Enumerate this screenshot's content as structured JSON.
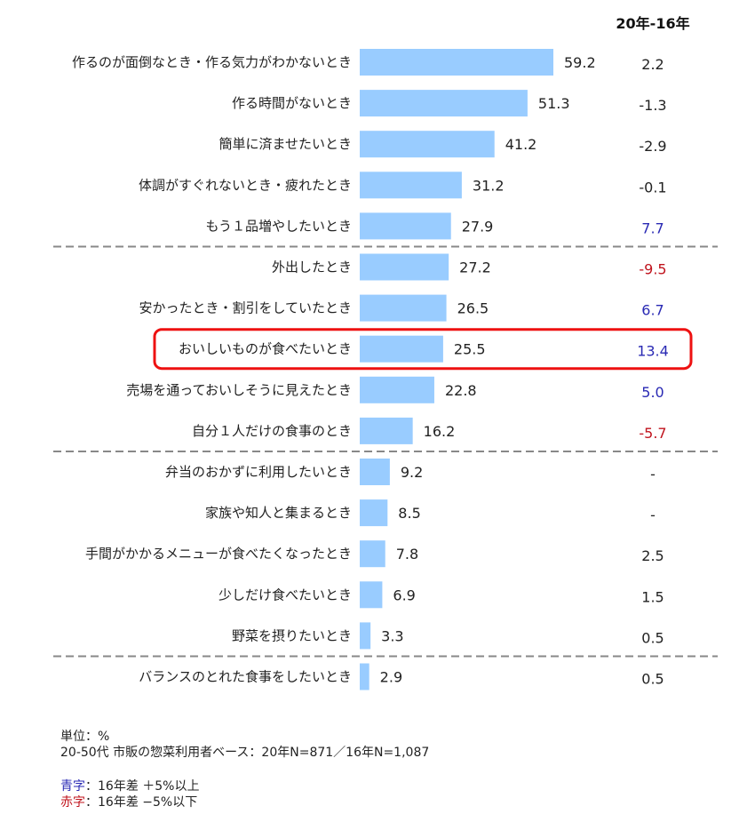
{
  "chart_data": {
    "type": "bar",
    "orientation": "horizontal",
    "unit": "%",
    "diff_header": "20年-16年",
    "categories": [
      "作るのが面倒なとき・作る気力がわかないとき",
      "作る時間がないとき",
      "簡単に済ませたいとき",
      "体調がすぐれないとき・疲れたとき",
      "もう１品増やしたいとき",
      "外出したとき",
      "安かったとき・割引をしていたとき",
      "おいしいものが食べたいとき",
      "売場を通っておいしそうに見えたとき",
      "自分１人だけの食事のとき",
      "弁当のおかずに利用したいとき",
      "家族や知人と集まるとき",
      "手間がかかるメニューが食べたくなったとき",
      "少しだけ食べたいとき",
      "野菜を摂りたいとき",
      "バランスのとれた食事をしたいとき"
    ],
    "values": [
      59.2,
      51.3,
      41.2,
      31.2,
      27.9,
      27.2,
      26.5,
      25.5,
      22.8,
      16.2,
      9.2,
      8.5,
      7.8,
      6.9,
      3.3,
      2.9
    ],
    "value_labels": [
      "59.2",
      "51.3",
      "41.2",
      "31.2",
      "27.9",
      "27.2",
      "26.5",
      "25.5",
      "22.8",
      "16.2",
      "9.2",
      "8.5",
      "7.8",
      "6.9",
      "3.3",
      "2.9"
    ],
    "diffs": [
      "2.2",
      "-1.3",
      "-2.9",
      "-0.1",
      "7.7",
      "-9.5",
      "6.7",
      "13.4",
      "5.0",
      "-5.7",
      "-",
      "-",
      "2.5",
      "1.5",
      "0.5",
      "0.5"
    ],
    "diff_status": [
      "normal",
      "normal",
      "normal",
      "normal",
      "up",
      "down",
      "up",
      "up",
      "up",
      "down",
      "normal",
      "normal",
      "normal",
      "normal",
      "normal",
      "normal"
    ],
    "highlighted_index": 7,
    "group_dividers_after_index": [
      4,
      9,
      14
    ],
    "colors": {
      "bar": "#99ccff",
      "up": "#2a2ab4",
      "down": "#c0141e",
      "normal": "#222222",
      "highlight_border": "#ee1111",
      "divider": "#888888"
    }
  },
  "notes": {
    "unit_line": "単位：%",
    "base_line": "20-50代  市販の惣菜利用者ベース：20年N=871／16年N=1,087",
    "blue_key": "青字",
    "blue_rest": "：16年差 ＋5%以上",
    "red_key": "赤字",
    "red_rest": "：16年差 −5%以下"
  }
}
